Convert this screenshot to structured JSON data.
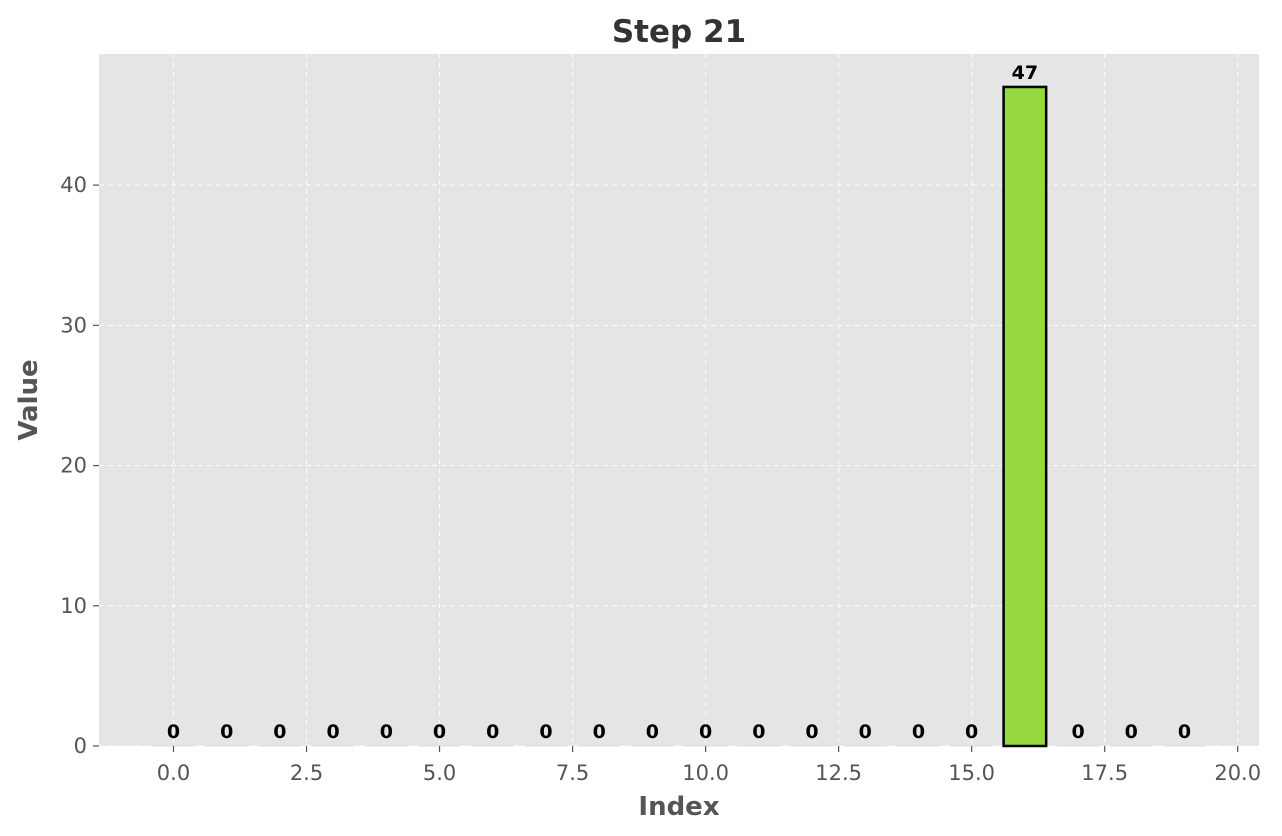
{
  "chart_data": {
    "type": "bar",
    "title": "Step 21",
    "xlabel": "Index",
    "ylabel": "Value",
    "x": [
      0,
      1,
      2,
      3,
      4,
      5,
      6,
      7,
      8,
      9,
      10,
      11,
      12,
      13,
      14,
      15,
      16,
      17,
      18,
      19
    ],
    "values": [
      0,
      0,
      0,
      0,
      0,
      0,
      0,
      0,
      0,
      0,
      0,
      0,
      0,
      0,
      0,
      0,
      47,
      0,
      0,
      0
    ],
    "data_labels": [
      "0",
      "0",
      "0",
      "0",
      "0",
      "0",
      "0",
      "0",
      "0",
      "0",
      "0",
      "0",
      "0",
      "0",
      "0",
      "0",
      "47",
      "0",
      "0",
      "0"
    ],
    "xlim": [
      -1.4,
      20.4
    ],
    "ylim": [
      0,
      49.35
    ],
    "x_ticks": [
      0,
      2.5,
      5,
      7.5,
      10,
      12.5,
      15,
      17.5,
      20
    ],
    "x_tick_labels": [
      "0.0",
      "2.5",
      "5.0",
      "7.5",
      "10.0",
      "12.5",
      "15.0",
      "17.5",
      "20.0"
    ],
    "y_ticks": [
      0,
      10,
      20,
      30,
      40
    ],
    "y_tick_labels": [
      "0",
      "10",
      "20",
      "30",
      "40"
    ],
    "grid": true,
    "legend": "none",
    "colors": {
      "background": "#e5e5e5",
      "grid": "#ffffff",
      "highlight_bar": "#96d93f",
      "bar_edge": "#000000",
      "tick": "#555555"
    }
  }
}
